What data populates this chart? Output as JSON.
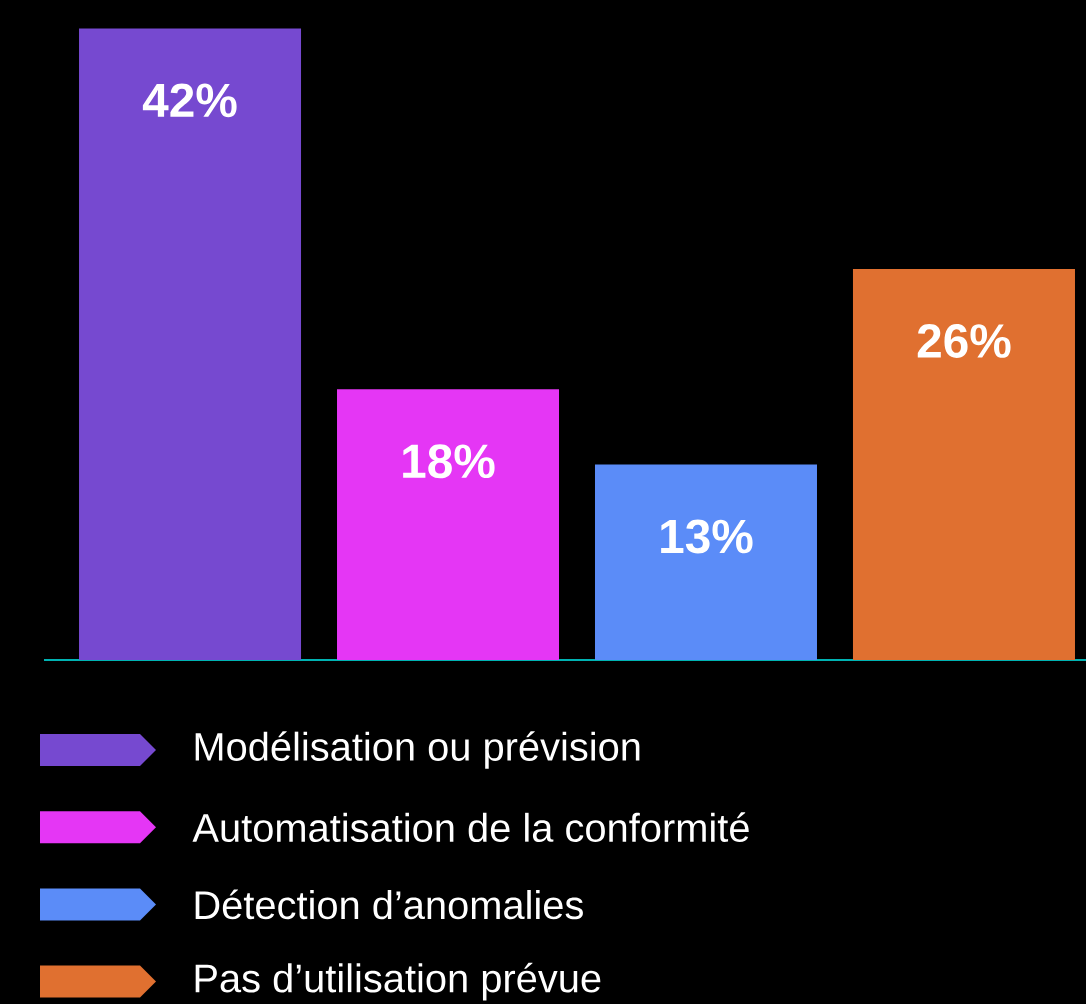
{
  "chart_data": {
    "type": "bar",
    "categories": [
      null
    ],
    "series": [
      {
        "name": "Modélisation ou prévision",
        "color": "#7649d0",
        "values": [
          42
        ],
        "value_labels": [
          "42%"
        ]
      },
      {
        "name": "Automatisation de la conformité",
        "color": "#e536f5",
        "values": [
          18
        ],
        "value_labels": [
          "18%"
        ]
      },
      {
        "name": "Détection d’anomalies",
        "color": "#5b8cf8",
        "values": [
          13
        ],
        "value_labels": [
          "13%"
        ]
      },
      {
        "name": "Pas d’utilisation prévue",
        "color": "#e07030",
        "values": [
          26
        ],
        "value_labels": [
          "26%"
        ]
      }
    ],
    "legend": "bottom"
  }
}
